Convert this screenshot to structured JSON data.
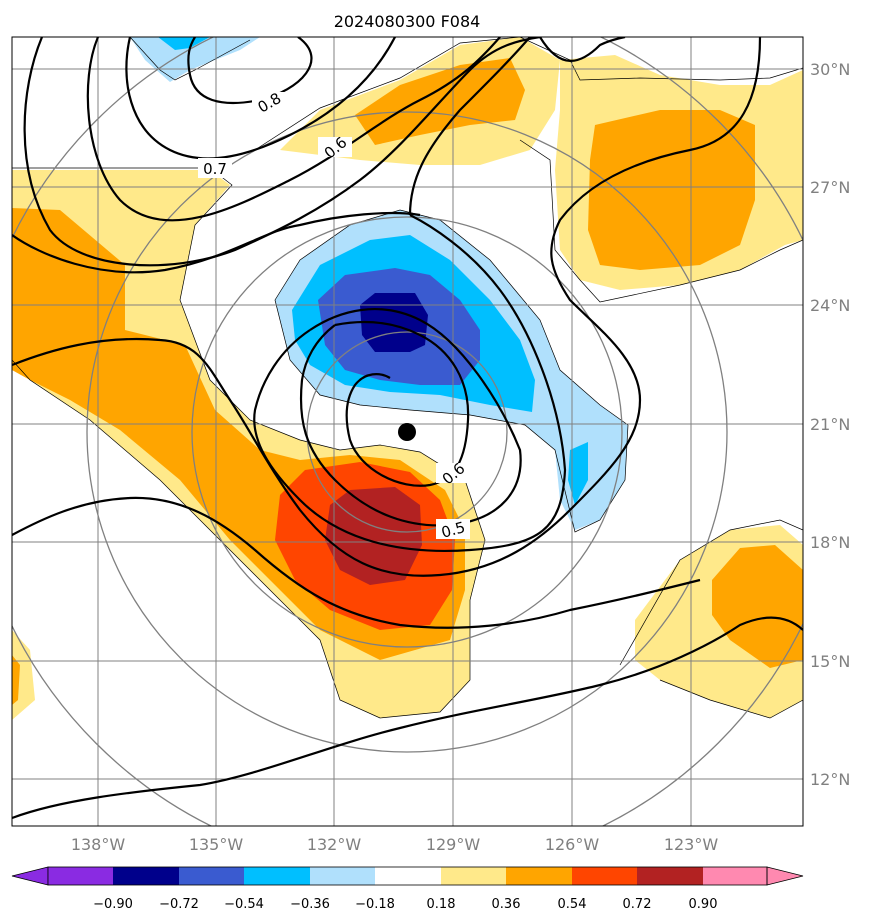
{
  "title": "2024080300 F084",
  "map": {
    "lat_labels": [
      "30°N",
      "27°N",
      "24°N",
      "21°N",
      "18°N",
      "15°N",
      "12°N"
    ],
    "lon_labels": [
      "138°W",
      "135°W",
      "132°W",
      "129°W",
      "126°W",
      "123°W"
    ],
    "contour_labels": [
      "0.8",
      "0.7",
      "0.6",
      "0.6",
      "0.5"
    ],
    "colors": {
      "neg_090": "#8a2be2",
      "neg_072": "#00008b",
      "neg_054": "#3a5bd0",
      "neg_036": "#00bfff",
      "neg_018": "#b0e0fc",
      "pos_018": "#ffe98a",
      "pos_036": "#ffa500",
      "pos_054": "#ff4500",
      "pos_072": "#b22222",
      "pos_090": "#ff89b0"
    }
  },
  "colorbar": {
    "labels": [
      "−0.90",
      "−0.72",
      "−0.54",
      "−0.36",
      "−0.18",
      "0.18",
      "0.36",
      "0.54",
      "0.72",
      "0.90"
    ]
  }
}
